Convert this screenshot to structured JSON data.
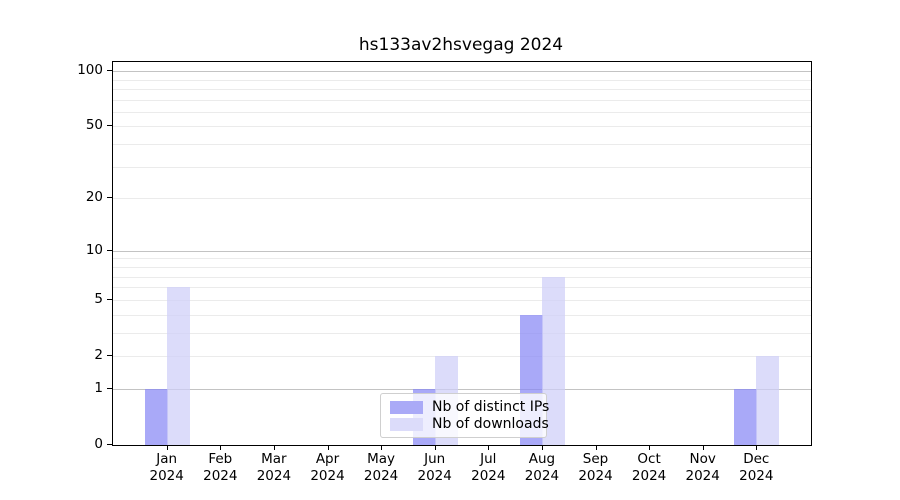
{
  "chart_data": {
    "type": "bar",
    "title": "hs133av2hsvegag 2024",
    "categories": [
      "Jan 2024",
      "Feb 2024",
      "Mar 2024",
      "Apr 2024",
      "May 2024",
      "Jun 2024",
      "Jul 2024",
      "Aug 2024",
      "Sep 2024",
      "Oct 2024",
      "Nov 2024",
      "Dec 2024"
    ],
    "series": [
      {
        "name": "Nb of distinct IPs",
        "color": "#aaaaf7",
        "bar_rgba": "rgba(136,136,245,0.72)",
        "values": [
          1,
          0,
          0,
          0,
          0,
          1,
          0,
          4,
          0,
          0,
          0,
          1
        ]
      },
      {
        "name": "Nb of downloads",
        "color": "#dcdcfa",
        "bar_rgba": "rgba(206,206,248,0.72)",
        "values": [
          6,
          0,
          0,
          0,
          0,
          2,
          0,
          7,
          0,
          0,
          0,
          2
        ]
      }
    ],
    "xlabel": "",
    "ylabel": "",
    "yscale": "log10(1+value)",
    "ylim": [
      0,
      112
    ],
    "ytick_values": [
      0,
      1,
      2,
      5,
      10,
      20,
      50,
      100
    ],
    "ytick_labels": [
      "0",
      "1",
      "2",
      "5",
      "10",
      "20",
      "50",
      "100"
    ],
    "gridlines": {
      "major_values": [
        1,
        10,
        100
      ],
      "minor_values": [
        2,
        3,
        4,
        5,
        6,
        7,
        8,
        9,
        20,
        30,
        40,
        50,
        60,
        70,
        80,
        90
      ],
      "major_color": "#c3c3c3",
      "minor_color": "#ebebeb"
    },
    "legend": {
      "position": "lower center"
    },
    "grid": true,
    "background_color": "#ffffff",
    "spine_color": "#000000"
  }
}
